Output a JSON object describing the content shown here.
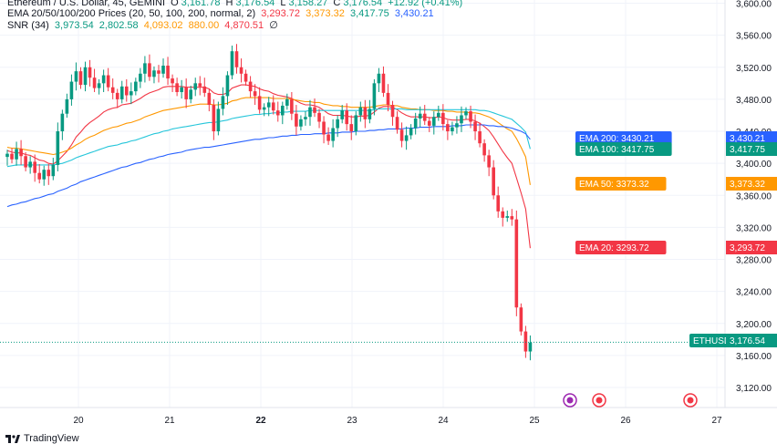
{
  "legend": {
    "symbol": "Ethereum / U.S. Dollar, 45, GEMINI",
    "open_label": "O",
    "open": "3,161.78",
    "high_label": "H",
    "high": "3,176.54",
    "low_label": "L",
    "low": "3,158.27",
    "close_label": "C",
    "close": "3,176.54",
    "change": "+12.92 (+0.41%)",
    "ema_title": "EMA 20/50/100/200 Prices (20, 50, 100, 200, normal, 2)",
    "ema20": "3,293.72",
    "ema50": "3,373.32",
    "ema100": "3,417.75",
    "ema200": "3,430.21",
    "snr_title": "SNR (34)",
    "snr_values": [
      "3,973.54",
      "2,802.58",
      "4,093.02",
      "880.00",
      "4,870.51",
      "∅"
    ]
  },
  "footer": {
    "brand": "TradingView"
  },
  "colors": {
    "up": "#089981",
    "down": "#f23645",
    "ema20": "#f23645",
    "ema50": "#ff9800",
    "ema100": "#26c6da",
    "ema200": "#2962ff",
    "last_price": "#089981",
    "grid": "#f0f3fa",
    "text": "#131722"
  },
  "chart_data": {
    "type": "line",
    "x_ticks": [
      "20",
      "21",
      "22",
      "23",
      "24",
      "25",
      "26",
      "27"
    ],
    "y_ticks": [
      "3,600.00",
      "3,560.00",
      "3,520.00",
      "3,480.00",
      "3,440.00",
      "3,400.00",
      "3,360.00",
      "3,320.00",
      "3,280.00",
      "3,240.00",
      "3,200.00",
      "3,160.00",
      "3,120.00"
    ],
    "ylim": [
      3095,
      3604
    ],
    "close_series": [
      3412,
      3405,
      3418,
      3409,
      3395,
      3402,
      3388,
      3380,
      3392,
      3384,
      3398,
      3440,
      3462,
      3480,
      3502,
      3515,
      3498,
      3520,
      3507,
      3494,
      3500,
      3510,
      3495,
      3488,
      3480,
      3496,
      3485,
      3490,
      3502,
      3512,
      3525,
      3508,
      3516,
      3512,
      3522,
      3506,
      3500,
      3489,
      3495,
      3480,
      3492,
      3500,
      3496,
      3488,
      3473,
      3440,
      3468,
      3484,
      3510,
      3540,
      3520,
      3512,
      3502,
      3490,
      3484,
      3467,
      3470,
      3476,
      3466,
      3460,
      3472,
      3480,
      3462,
      3446,
      3455,
      3458,
      3470,
      3463,
      3452,
      3436,
      3428,
      3444,
      3455,
      3466,
      3449,
      3440,
      3460,
      3470,
      3455,
      3468,
      3500,
      3512,
      3488,
      3473,
      3458,
      3442,
      3428,
      3435,
      3444,
      3456,
      3462,
      3453,
      3447,
      3458,
      3463,
      3449,
      3440,
      3445,
      3450,
      3460,
      3465,
      3452,
      3440,
      3425,
      3410,
      3395,
      3360,
      3340,
      3332,
      3334,
      3330,
      3220,
      3190,
      3165,
      3176
    ],
    "series": [
      {
        "name": "EMA 20",
        "values": [
          3416,
          3414,
          3413,
          3413,
          3411,
          3410,
          3407,
          3404,
          3403,
          3400,
          3399,
          3403,
          3409,
          3415,
          3423,
          3433,
          3439,
          3446,
          3451,
          3455,
          3459,
          3464,
          3467,
          3469,
          3470,
          3473,
          3474,
          3475,
          3478,
          3481,
          3485,
          3488,
          3490,
          3492,
          3495,
          3496,
          3496,
          3496,
          3496,
          3495,
          3495,
          3495,
          3495,
          3495,
          3493,
          3488,
          3486,
          3486,
          3488,
          3494,
          3496,
          3498,
          3498,
          3497,
          3496,
          3493,
          3491,
          3490,
          3487,
          3485,
          3484,
          3483,
          3481,
          3478,
          3475,
          3473,
          3473,
          3472,
          3470,
          3466,
          3462,
          3460,
          3460,
          3460,
          3459,
          3458,
          3458,
          3459,
          3459,
          3460,
          3464,
          3469,
          3471,
          3471,
          3470,
          3467,
          3463,
          3460,
          3458,
          3458,
          3458,
          3458,
          3457,
          3457,
          3458,
          3457,
          3455,
          3454,
          3454,
          3454,
          3455,
          3455,
          3453,
          3450,
          3446,
          3441,
          3433,
          3424,
          3415,
          3407,
          3400,
          3382,
          3363,
          3343,
          3294
        ]
      },
      {
        "name": "EMA 50",
        "values": [
          3420,
          3419,
          3419,
          3418,
          3417,
          3416,
          3415,
          3414,
          3413,
          3412,
          3411,
          3412,
          3414,
          3416,
          3419,
          3423,
          3426,
          3430,
          3433,
          3435,
          3438,
          3441,
          3443,
          3445,
          3446,
          3448,
          3450,
          3451,
          3453,
          3455,
          3458,
          3460,
          3462,
          3464,
          3466,
          3467,
          3468,
          3469,
          3470,
          3471,
          3472,
          3473,
          3474,
          3474,
          3474,
          3473,
          3473,
          3474,
          3475,
          3478,
          3479,
          3481,
          3482,
          3482,
          3482,
          3482,
          3482,
          3482,
          3481,
          3481,
          3481,
          3481,
          3480,
          3479,
          3478,
          3477,
          3477,
          3476,
          3476,
          3474,
          3473,
          3472,
          3472,
          3471,
          3471,
          3470,
          3470,
          3470,
          3470,
          3470,
          3471,
          3472,
          3473,
          3473,
          3472,
          3472,
          3470,
          3469,
          3468,
          3468,
          3467,
          3467,
          3467,
          3466,
          3466,
          3466,
          3465,
          3465,
          3464,
          3464,
          3464,
          3463,
          3463,
          3462,
          3460,
          3458,
          3455,
          3451,
          3447,
          3443,
          3440,
          3431,
          3420,
          3408,
          3373
        ]
      },
      {
        "name": "EMA 100",
        "values": [
          3396,
          3397,
          3398,
          3398,
          3398,
          3398,
          3398,
          3398,
          3398,
          3398,
          3398,
          3399,
          3400,
          3402,
          3404,
          3407,
          3409,
          3411,
          3413,
          3415,
          3417,
          3419,
          3421,
          3422,
          3423,
          3425,
          3426,
          3428,
          3429,
          3431,
          3433,
          3435,
          3437,
          3438,
          3440,
          3441,
          3443,
          3444,
          3445,
          3446,
          3447,
          3448,
          3449,
          3450,
          3451,
          3451,
          3452,
          3453,
          3454,
          3456,
          3457,
          3458,
          3459,
          3460,
          3461,
          3461,
          3462,
          3462,
          3463,
          3463,
          3464,
          3464,
          3465,
          3465,
          3465,
          3465,
          3466,
          3466,
          3466,
          3466,
          3466,
          3466,
          3466,
          3466,
          3466,
          3466,
          3466,
          3466,
          3466,
          3466,
          3467,
          3468,
          3468,
          3468,
          3468,
          3468,
          3468,
          3467,
          3467,
          3467,
          3467,
          3467,
          3467,
          3467,
          3467,
          3467,
          3467,
          3467,
          3467,
          3467,
          3467,
          3467,
          3467,
          3466,
          3466,
          3465,
          3463,
          3461,
          3459,
          3457,
          3455,
          3450,
          3445,
          3439,
          3418
        ]
      },
      {
        "name": "EMA 200",
        "values": [
          3346,
          3348,
          3349,
          3351,
          3352,
          3354,
          3356,
          3357,
          3359,
          3361,
          3362,
          3365,
          3367,
          3369,
          3372,
          3374,
          3377,
          3379,
          3381,
          3383,
          3385,
          3387,
          3389,
          3391,
          3393,
          3395,
          3396,
          3398,
          3400,
          3401,
          3403,
          3405,
          3406,
          3408,
          3409,
          3411,
          3412,
          3413,
          3414,
          3416,
          3417,
          3418,
          3419,
          3420,
          3420,
          3421,
          3422,
          3423,
          3424,
          3425,
          3426,
          3427,
          3428,
          3429,
          3430,
          3430,
          3431,
          3432,
          3432,
          3433,
          3434,
          3434,
          3435,
          3435,
          3436,
          3436,
          3436,
          3437,
          3437,
          3437,
          3438,
          3438,
          3438,
          3439,
          3439,
          3439,
          3440,
          3440,
          3440,
          3441,
          3441,
          3442,
          3442,
          3443,
          3443,
          3443,
          3443,
          3444,
          3444,
          3444,
          3445,
          3445,
          3445,
          3446,
          3446,
          3446,
          3446,
          3447,
          3447,
          3447,
          3448,
          3448,
          3448,
          3448,
          3448,
          3447,
          3447,
          3446,
          3446,
          3445,
          3444,
          3442,
          3440,
          3437,
          3430
        ]
      }
    ],
    "price_labels": [
      {
        "text": "EMA 200: 3430.21",
        "axis": "3,430.21",
        "color": "#2962ff"
      },
      {
        "text": "EMA 100: 3417.75",
        "axis": "3,417.75",
        "color": "#089981"
      },
      {
        "text": "EMA 50: 3373.32",
        "axis": "3,373.32",
        "color": "#ff9800"
      },
      {
        "text": "EMA 20: 3293.72",
        "axis": "3,293.72",
        "color": "#f23645"
      },
      {
        "text": "ETHUSD",
        "axis": "3,176.54",
        "color": "#089981"
      }
    ],
    "last_price": 3176.54
  }
}
